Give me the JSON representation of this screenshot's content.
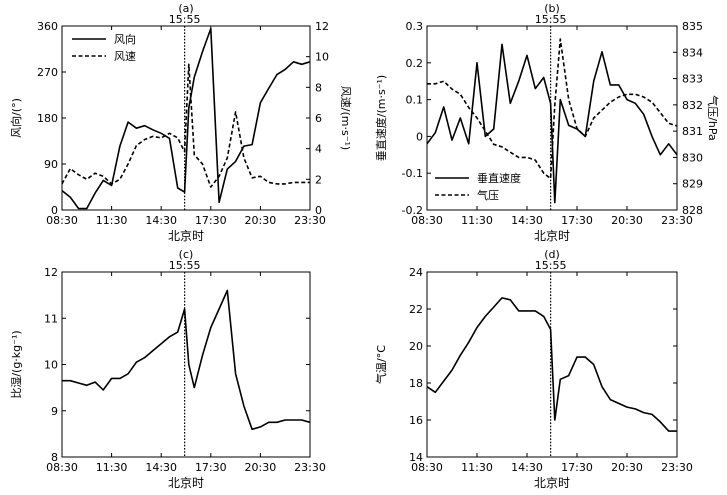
{
  "chart_data": [
    {
      "panel": "(a)",
      "type": "line",
      "event_label": "15:55",
      "event_x": "15:55",
      "xlabel": "北京时",
      "x_ticks": [
        "08:30",
        "11:30",
        "14:30",
        "17:30",
        "20:30",
        "23:30"
      ],
      "xlim": [
        "08:30",
        "23:30"
      ],
      "ylabel_left": "风向/(°)",
      "ylim_left": [
        0,
        360
      ],
      "yticks_left": [
        "0",
        "90",
        "180",
        "270",
        "360"
      ],
      "ylabel_right": "风速/(m·s⁻¹)",
      "ylim_right": [
        0,
        12
      ],
      "yticks_right": [
        "0",
        "2",
        "4",
        "6",
        "8",
        "10",
        "12"
      ],
      "legend_position": "top-left",
      "series": [
        {
          "name": "风向",
          "axis": "left",
          "style": "solid",
          "x": [
            "08:30",
            "09:00",
            "09:30",
            "10:00",
            "10:30",
            "11:00",
            "11:30",
            "12:00",
            "12:30",
            "13:00",
            "13:30",
            "14:00",
            "14:30",
            "15:00",
            "15:30",
            "15:55",
            "16:10",
            "16:30",
            "17:00",
            "17:30",
            "18:00",
            "18:30",
            "19:00",
            "19:30",
            "20:00",
            "20:30",
            "21:00",
            "21:30",
            "22:00",
            "22:30",
            "23:00",
            "23:30"
          ],
          "values": [
            38,
            25,
            3,
            3,
            33,
            58,
            48,
            125,
            172,
            160,
            165,
            157,
            150,
            140,
            43,
            35,
            200,
            260,
            310,
            355,
            15,
            80,
            95,
            125,
            128,
            210,
            238,
            265,
            275,
            290,
            285,
            290
          ]
        },
        {
          "name": "风速",
          "axis": "right",
          "style": "dashed",
          "x": [
            "08:30",
            "09:00",
            "09:30",
            "10:00",
            "10:30",
            "11:00",
            "11:30",
            "12:00",
            "12:30",
            "13:00",
            "13:30",
            "14:00",
            "14:30",
            "15:00",
            "15:30",
            "15:55",
            "16:10",
            "16:30",
            "17:00",
            "17:30",
            "18:00",
            "18:30",
            "19:00",
            "19:30",
            "20:00",
            "20:30",
            "21:00",
            "21:30",
            "22:00",
            "22:30",
            "23:00",
            "23:30"
          ],
          "values": [
            1.7,
            2.7,
            2.3,
            2.0,
            2.4,
            2.2,
            1.7,
            2.0,
            3.0,
            4.2,
            4.6,
            4.8,
            4.7,
            5.0,
            4.7,
            3.8,
            9.5,
            3.6,
            3.0,
            1.5,
            2.2,
            3.4,
            6.4,
            3.4,
            2.1,
            2.2,
            1.8,
            1.7,
            1.7,
            1.8,
            1.8,
            1.8
          ]
        }
      ]
    },
    {
      "panel": "(b)",
      "type": "line",
      "event_label": "15:55",
      "event_x": "15:55",
      "xlabel": "北京时",
      "x_ticks": [
        "08:30",
        "11:30",
        "14:30",
        "17:30",
        "20:30",
        "23:30"
      ],
      "xlim": [
        "08:30",
        "23:30"
      ],
      "ylabel_left": "垂直速度/(m·s⁻¹)",
      "ylim_left": [
        -0.2,
        0.3
      ],
      "yticks_left": [
        "-0.2",
        "-0.1",
        "0",
        "0.1",
        "0.2",
        "0.3"
      ],
      "ylabel_right": "气压/hPa",
      "ylim_right": [
        828,
        835
      ],
      "yticks_right": [
        "828",
        "829",
        "830",
        "831",
        "832",
        "833",
        "834",
        "835"
      ],
      "legend_position": "bottom-left",
      "series": [
        {
          "name": "垂直速度",
          "axis": "left",
          "style": "solid",
          "x": [
            "08:30",
            "09:00",
            "09:30",
            "10:00",
            "10:30",
            "11:00",
            "11:30",
            "12:00",
            "12:30",
            "13:00",
            "13:30",
            "14:00",
            "14:30",
            "15:00",
            "15:30",
            "15:55",
            "16:10",
            "16:30",
            "17:00",
            "17:30",
            "18:00",
            "18:30",
            "19:00",
            "19:30",
            "20:00",
            "20:30",
            "21:00",
            "21:30",
            "22:00",
            "22:30",
            "23:00",
            "23:30"
          ],
          "values": [
            -0.02,
            0.01,
            0.08,
            -0.01,
            0.05,
            -0.02,
            0.2,
            0.0,
            0.02,
            0.25,
            0.09,
            0.15,
            0.22,
            0.13,
            0.16,
            0.09,
            -0.18,
            0.1,
            0.03,
            0.02,
            0.0,
            0.15,
            0.23,
            0.14,
            0.14,
            0.1,
            0.09,
            0.06,
            0.0,
            -0.05,
            -0.02,
            -0.05
          ]
        },
        {
          "name": "气压",
          "axis": "right",
          "style": "dashed",
          "x": [
            "08:30",
            "09:00",
            "09:30",
            "10:00",
            "10:30",
            "11:00",
            "11:30",
            "12:00",
            "12:30",
            "13:00",
            "13:30",
            "14:00",
            "14:30",
            "15:00",
            "15:30",
            "15:55",
            "16:10",
            "16:30",
            "17:00",
            "17:30",
            "18:00",
            "18:30",
            "19:00",
            "19:30",
            "20:00",
            "20:30",
            "21:00",
            "21:30",
            "22:00",
            "22:30",
            "23:00",
            "23:30"
          ],
          "values": [
            832.8,
            832.8,
            832.9,
            832.6,
            832.4,
            831.9,
            831.5,
            831.0,
            830.5,
            830.4,
            830.2,
            830.0,
            830.0,
            829.9,
            829.4,
            829.2,
            832.0,
            834.5,
            832.2,
            831.1,
            830.8,
            831.5,
            831.8,
            832.1,
            832.3,
            832.4,
            832.4,
            832.3,
            832.1,
            831.7,
            831.3,
            831.2
          ]
        }
      ]
    },
    {
      "panel": "(c)",
      "type": "line",
      "event_label": "15:55",
      "event_x": "15:55",
      "xlabel": "北京时",
      "x_ticks": [
        "08:30",
        "11:30",
        "14:30",
        "17:30",
        "20:30",
        "23:30"
      ],
      "xlim": [
        "08:30",
        "23:30"
      ],
      "ylabel_left": "比湿/(g·kg⁻¹)",
      "ylim_left": [
        8,
        12
      ],
      "yticks_left": [
        "8",
        "9",
        "10",
        "11",
        "12"
      ],
      "series": [
        {
          "name": "",
          "axis": "left",
          "style": "solid",
          "x": [
            "08:30",
            "09:00",
            "09:30",
            "10:00",
            "10:30",
            "11:00",
            "11:30",
            "12:00",
            "12:30",
            "13:00",
            "13:30",
            "14:00",
            "14:30",
            "15:00",
            "15:30",
            "15:55",
            "16:10",
            "16:30",
            "17:00",
            "17:30",
            "18:00",
            "18:30",
            "19:00",
            "19:30",
            "20:00",
            "20:30",
            "21:00",
            "21:30",
            "22:00",
            "22:30",
            "23:00",
            "23:30"
          ],
          "values": [
            9.65,
            9.65,
            9.6,
            9.55,
            9.62,
            9.45,
            9.7,
            9.7,
            9.8,
            10.05,
            10.15,
            10.3,
            10.45,
            10.6,
            10.7,
            11.2,
            10.0,
            9.5,
            10.2,
            10.8,
            11.2,
            11.6,
            9.8,
            9.1,
            8.6,
            8.65,
            8.75,
            8.75,
            8.8,
            8.8,
            8.8,
            8.75
          ]
        }
      ]
    },
    {
      "panel": "(d)",
      "type": "line",
      "event_label": "15:55",
      "event_x": "15:55",
      "xlabel": "北京时",
      "x_ticks": [
        "08:30",
        "11:30",
        "14:30",
        "17:30",
        "20:30",
        "23:30"
      ],
      "xlim": [
        "08:30",
        "23:30"
      ],
      "ylabel_left": "气温/°C",
      "ylim_left": [
        14,
        24
      ],
      "yticks_left": [
        "14",
        "16",
        "18",
        "20",
        "22",
        "24"
      ],
      "series": [
        {
          "name": "",
          "axis": "left",
          "style": "solid",
          "x": [
            "08:30",
            "09:00",
            "09:30",
            "10:00",
            "10:30",
            "11:00",
            "11:30",
            "12:00",
            "12:30",
            "13:00",
            "13:30",
            "14:00",
            "14:30",
            "15:00",
            "15:30",
            "15:55",
            "16:10",
            "16:30",
            "17:00",
            "17:30",
            "18:00",
            "18:30",
            "19:00",
            "19:30",
            "20:00",
            "20:30",
            "21:00",
            "21:30",
            "22:00",
            "22:30",
            "23:00",
            "23:30"
          ],
          "values": [
            17.8,
            17.5,
            18.1,
            18.7,
            19.5,
            20.2,
            21.0,
            21.6,
            22.1,
            22.6,
            22.5,
            21.9,
            21.9,
            21.9,
            21.6,
            20.9,
            16.0,
            18.2,
            18.4,
            19.4,
            19.4,
            19.0,
            17.8,
            17.1,
            16.9,
            16.7,
            16.6,
            16.4,
            16.3,
            15.9,
            15.4,
            15.4
          ]
        }
      ]
    }
  ]
}
